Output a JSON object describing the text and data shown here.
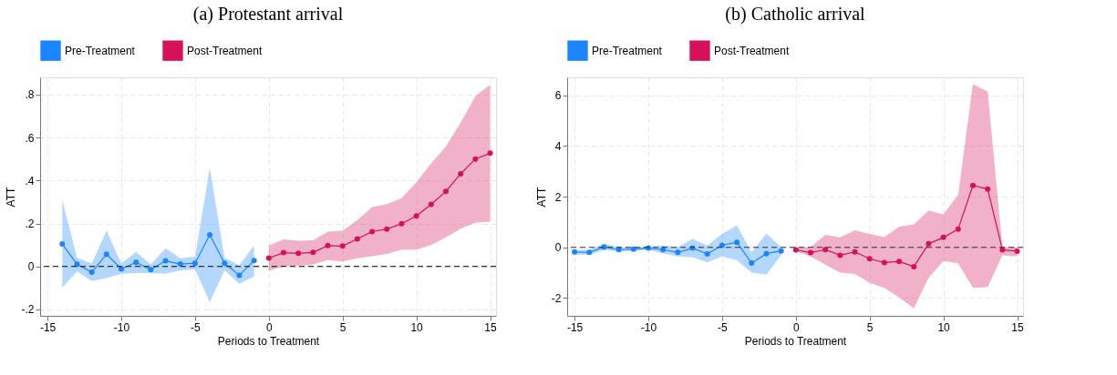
{
  "chart_data": [
    {
      "type": "line",
      "title": "(a) Protestant arrival",
      "xlabel": "Periods to Treatment",
      "ylabel": "ATT",
      "legend": "top",
      "grid": true,
      "marker": "circle",
      "line_style": "solid",
      "xlim": [
        -15.5,
        15.4
      ],
      "xticks": [
        -15,
        -10,
        -5,
        0,
        5,
        10,
        15
      ],
      "ylim": [
        -0.23,
        0.88
      ],
      "yticks": [
        {
          "value": -0.2,
          "label": "-.2"
        },
        0,
        {
          "value": 0.2,
          "label": ".2"
        },
        {
          "value": 0.4,
          "label": ".4"
        },
        {
          "value": 0.6,
          "label": ".6"
        },
        {
          "value": 0.8,
          "label": ".8"
        }
      ],
      "ref_lines": [
        {
          "axis": "y",
          "value": 0,
          "color": "#333333",
          "line_style": "dashed"
        }
      ],
      "series": [
        {
          "name": "Pre-Treatment",
          "color": "#1a85ff",
          "x": [
            -14,
            -13,
            -12,
            -11,
            -10,
            -9,
            -8,
            -7,
            -6,
            -5,
            -4,
            -3,
            -2,
            -1
          ],
          "values": [
            0.105,
            0.01,
            -0.027,
            0.057,
            -0.012,
            0.019,
            -0.015,
            0.026,
            0.011,
            0.015,
            0.147,
            0.015,
            -0.041,
            0.027
          ],
          "lower": [
            -0.099,
            -0.023,
            -0.068,
            -0.054,
            -0.034,
            -0.031,
            -0.031,
            -0.034,
            -0.018,
            -0.015,
            -0.166,
            -0.018,
            -0.081,
            -0.047
          ],
          "upper": [
            0.31,
            0.04,
            0.014,
            0.166,
            0.014,
            0.068,
            0.009,
            0.085,
            0.038,
            0.045,
            0.46,
            0.04,
            0.005,
            0.097
          ]
        },
        {
          "name": "Post-Treatment",
          "color": "#d41159",
          "x": [
            0,
            1,
            2,
            3,
            4,
            5,
            6,
            7,
            8,
            9,
            10,
            11,
            12,
            13,
            14,
            15
          ],
          "values": [
            0.039,
            0.064,
            0.061,
            0.065,
            0.097,
            0.095,
            0.128,
            0.162,
            0.174,
            0.199,
            0.235,
            0.289,
            0.349,
            0.431,
            0.5,
            0.527
          ],
          "lower": [
            -0.02,
            0.0,
            0.004,
            0.009,
            0.03,
            0.023,
            0.038,
            0.047,
            0.058,
            0.078,
            0.078,
            0.099,
            0.135,
            0.176,
            0.203,
            0.209
          ],
          "upper": [
            0.097,
            0.126,
            0.12,
            0.122,
            0.162,
            0.166,
            0.216,
            0.276,
            0.29,
            0.318,
            0.392,
            0.48,
            0.558,
            0.669,
            0.793,
            0.845
          ]
        }
      ]
    },
    {
      "type": "line",
      "title": "(b) Catholic arrival",
      "xlabel": "Periods to Treatment",
      "ylabel": "ATT",
      "legend": "top",
      "grid": true,
      "marker": "circle",
      "line_style": "solid",
      "xlim": [
        -15.5,
        15.4
      ],
      "xticks": [
        -15,
        -10,
        -5,
        0,
        5,
        10,
        15
      ],
      "ylim": [
        -2.7,
        6.7
      ],
      "yticks": [
        -2,
        0,
        2,
        4,
        6
      ],
      "ref_lines": [
        {
          "axis": "y",
          "value": 0,
          "color": "#333333",
          "line_style": "dashed"
        }
      ],
      "series": [
        {
          "name": "Pre-Treatment",
          "color": "#1a85ff",
          "x": [
            -15,
            -14,
            -13,
            -12,
            -11,
            -10,
            -9,
            -8,
            -7,
            -6,
            -5,
            -4,
            -3,
            -2,
            -1
          ],
          "values": [
            -0.18,
            -0.2,
            0.01,
            -0.09,
            -0.07,
            -0.03,
            -0.09,
            -0.2,
            -0.03,
            -0.26,
            0.08,
            0.2,
            -0.62,
            -0.25,
            -0.14
          ],
          "lower": [
            -0.29,
            -0.29,
            -0.1,
            -0.17,
            -0.14,
            -0.1,
            -0.24,
            -0.36,
            -0.39,
            -0.59,
            -0.36,
            -0.51,
            -1.0,
            -1.08,
            -0.31
          ],
          "upper": [
            -0.1,
            -0.1,
            0.15,
            0.01,
            0.01,
            0.03,
            0.08,
            0.01,
            0.33,
            0.07,
            0.53,
            0.87,
            -0.2,
            0.55,
            0.01
          ]
        },
        {
          "name": "Post-Treatment",
          "color": "#d41159",
          "x": [
            0,
            1,
            2,
            3,
            4,
            5,
            6,
            7,
            8,
            9,
            10,
            11,
            12,
            13,
            14,
            15
          ],
          "values": [
            -0.1,
            -0.21,
            -0.09,
            -0.31,
            -0.18,
            -0.45,
            -0.6,
            -0.56,
            -0.76,
            0.14,
            0.39,
            0.72,
            2.44,
            2.3,
            -0.1,
            -0.15
          ],
          "lower": [
            -0.16,
            -0.36,
            -0.68,
            -1.0,
            -1.05,
            -1.4,
            -1.6,
            -1.97,
            -2.4,
            -1.2,
            -0.54,
            -0.63,
            -1.6,
            -1.57,
            -0.31,
            -0.36
          ],
          "upper": [
            -0.01,
            0.01,
            0.49,
            0.39,
            0.67,
            0.53,
            0.4,
            0.82,
            0.91,
            1.45,
            1.3,
            2.06,
            6.43,
            6.14,
            0.01,
            0.01
          ]
        }
      ]
    }
  ]
}
